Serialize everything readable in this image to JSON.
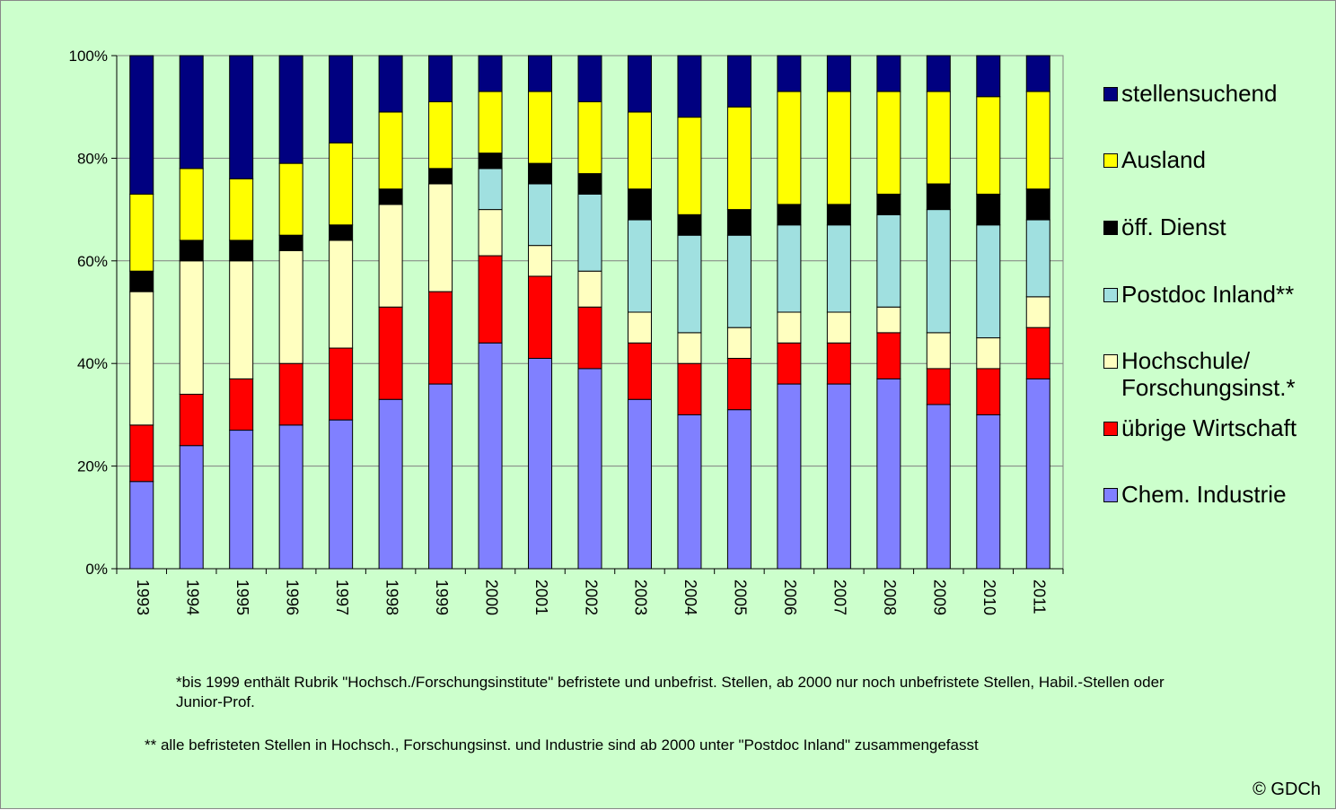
{
  "chart_data": {
    "type": "stacked_bar",
    "categories": [
      "1993",
      "1994",
      "1995",
      "1996",
      "1997",
      "1998",
      "1999",
      "2000",
      "2001",
      "2002",
      "2003",
      "2004",
      "2005",
      "2006",
      "2007",
      "2008",
      "2009",
      "2010",
      "2011"
    ],
    "series": [
      {
        "name": "Chem. Industrie",
        "color": "#8080ff",
        "values": [
          17,
          24,
          27,
          28,
          29,
          33,
          36,
          44,
          41,
          39,
          33,
          30,
          31,
          36,
          36,
          37,
          32,
          30,
          37
        ]
      },
      {
        "name": "übrige Wirtschaft",
        "color": "#ff0000",
        "values": [
          11,
          10,
          10,
          12,
          14,
          18,
          18,
          17,
          16,
          12,
          11,
          10,
          10,
          8,
          8,
          9,
          7,
          9,
          10
        ]
      },
      {
        "name": "Hochschule/ Forschungsinst.*",
        "color": "#ffffc0",
        "values": [
          26,
          26,
          23,
          22,
          21,
          20,
          21,
          9,
          6,
          7,
          6,
          6,
          6,
          6,
          6,
          5,
          7,
          6,
          6
        ]
      },
      {
        "name": "Postdoc Inland**",
        "color": "#a0e0e0",
        "values": [
          0,
          0,
          0,
          0,
          0,
          0,
          0,
          8,
          12,
          15,
          18,
          19,
          18,
          17,
          17,
          18,
          24,
          22,
          15
        ]
      },
      {
        "name": "öff. Dienst",
        "color": "#000000",
        "values": [
          4,
          4,
          4,
          3,
          3,
          3,
          3,
          3,
          4,
          4,
          6,
          4,
          5,
          4,
          4,
          4,
          5,
          6,
          6
        ]
      },
      {
        "name": "Ausland",
        "color": "#ffff00",
        "values": [
          15,
          14,
          12,
          14,
          16,
          15,
          13,
          12,
          14,
          14,
          15,
          19,
          20,
          22,
          22,
          20,
          18,
          19,
          19
        ]
      },
      {
        "name": "stellensuchend",
        "color": "#000080",
        "values": [
          27,
          22,
          24,
          21,
          17,
          11,
          9,
          7,
          7,
          9,
          11,
          12,
          10,
          7,
          7,
          7,
          7,
          8,
          7
        ]
      }
    ],
    "ylim": [
      0,
      100
    ],
    "yticks": [
      {
        "value": 0,
        "label": "0%"
      },
      {
        "value": 20,
        "label": "20%"
      },
      {
        "value": 40,
        "label": "40%"
      },
      {
        "value": 60,
        "label": "60%"
      },
      {
        "value": 80,
        "label": "80%"
      },
      {
        "value": 100,
        "label": "100%"
      }
    ],
    "grid": true,
    "notes": [
      "*bis 1999 enthält Rubrik \"Hochsch./Forschungsinstitute\" befristete und unbefrist. Stellen, ab 2000 nur noch unbefristete Stellen, Habil.-Stellen oder Junior-Prof.",
      "** alle befristeten Stellen in Hochsch., Forschungsinst. und Industrie sind ab 2000 unter \"Postdoc Inland\" zusammengefasst"
    ],
    "copyright": "© GDCh"
  }
}
